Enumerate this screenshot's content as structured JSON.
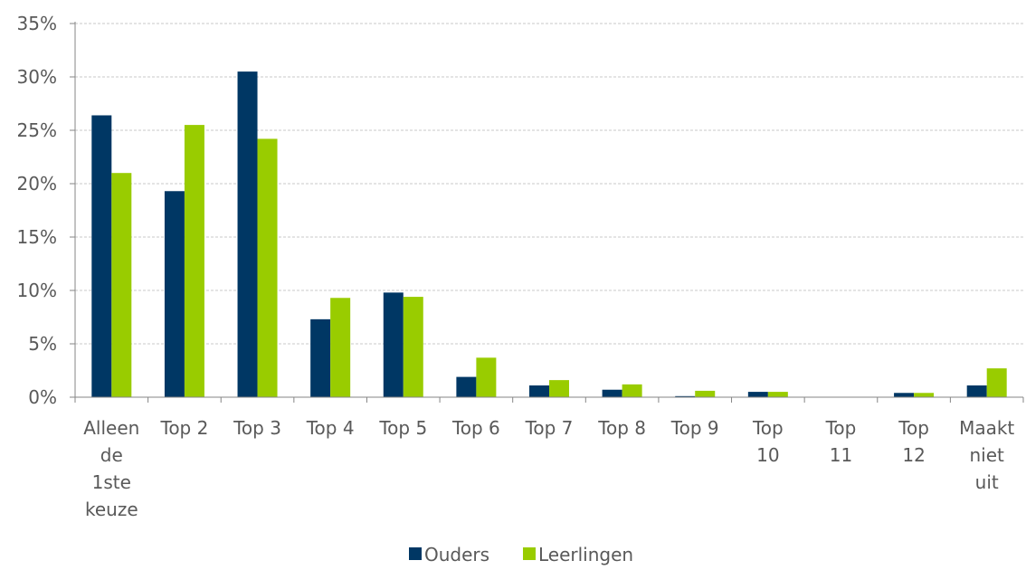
{
  "chart_data": {
    "type": "bar",
    "categories": [
      [
        "Alleen",
        "de",
        "1ste",
        "keuze"
      ],
      [
        "Top 2"
      ],
      [
        "Top 3"
      ],
      [
        "Top 4"
      ],
      [
        "Top 5"
      ],
      [
        "Top 6"
      ],
      [
        "Top 7"
      ],
      [
        "Top 8"
      ],
      [
        "Top 9"
      ],
      [
        "Top",
        "10"
      ],
      [
        "Top",
        "11"
      ],
      [
        "Top",
        "12"
      ],
      [
        "Maakt",
        "niet",
        "uit"
      ]
    ],
    "series": [
      {
        "name": "Ouders",
        "color": "#003764",
        "values": [
          26.4,
          19.3,
          30.5,
          7.3,
          9.8,
          1.9,
          1.1,
          0.7,
          0.1,
          0.5,
          0.0,
          0.4,
          1.1
        ]
      },
      {
        "name": "Leerlingen",
        "color": "#99cc00",
        "values": [
          21.0,
          25.5,
          24.2,
          9.3,
          9.4,
          3.7,
          1.6,
          1.2,
          0.6,
          0.5,
          0.0,
          0.4,
          2.7
        ]
      }
    ],
    "yticks": [
      "0%",
      "5%",
      "10%",
      "15%",
      "20%",
      "25%",
      "30%",
      "35%"
    ],
    "ylim": [
      0,
      35
    ],
    "grid": true,
    "legend_position": "bottom"
  }
}
